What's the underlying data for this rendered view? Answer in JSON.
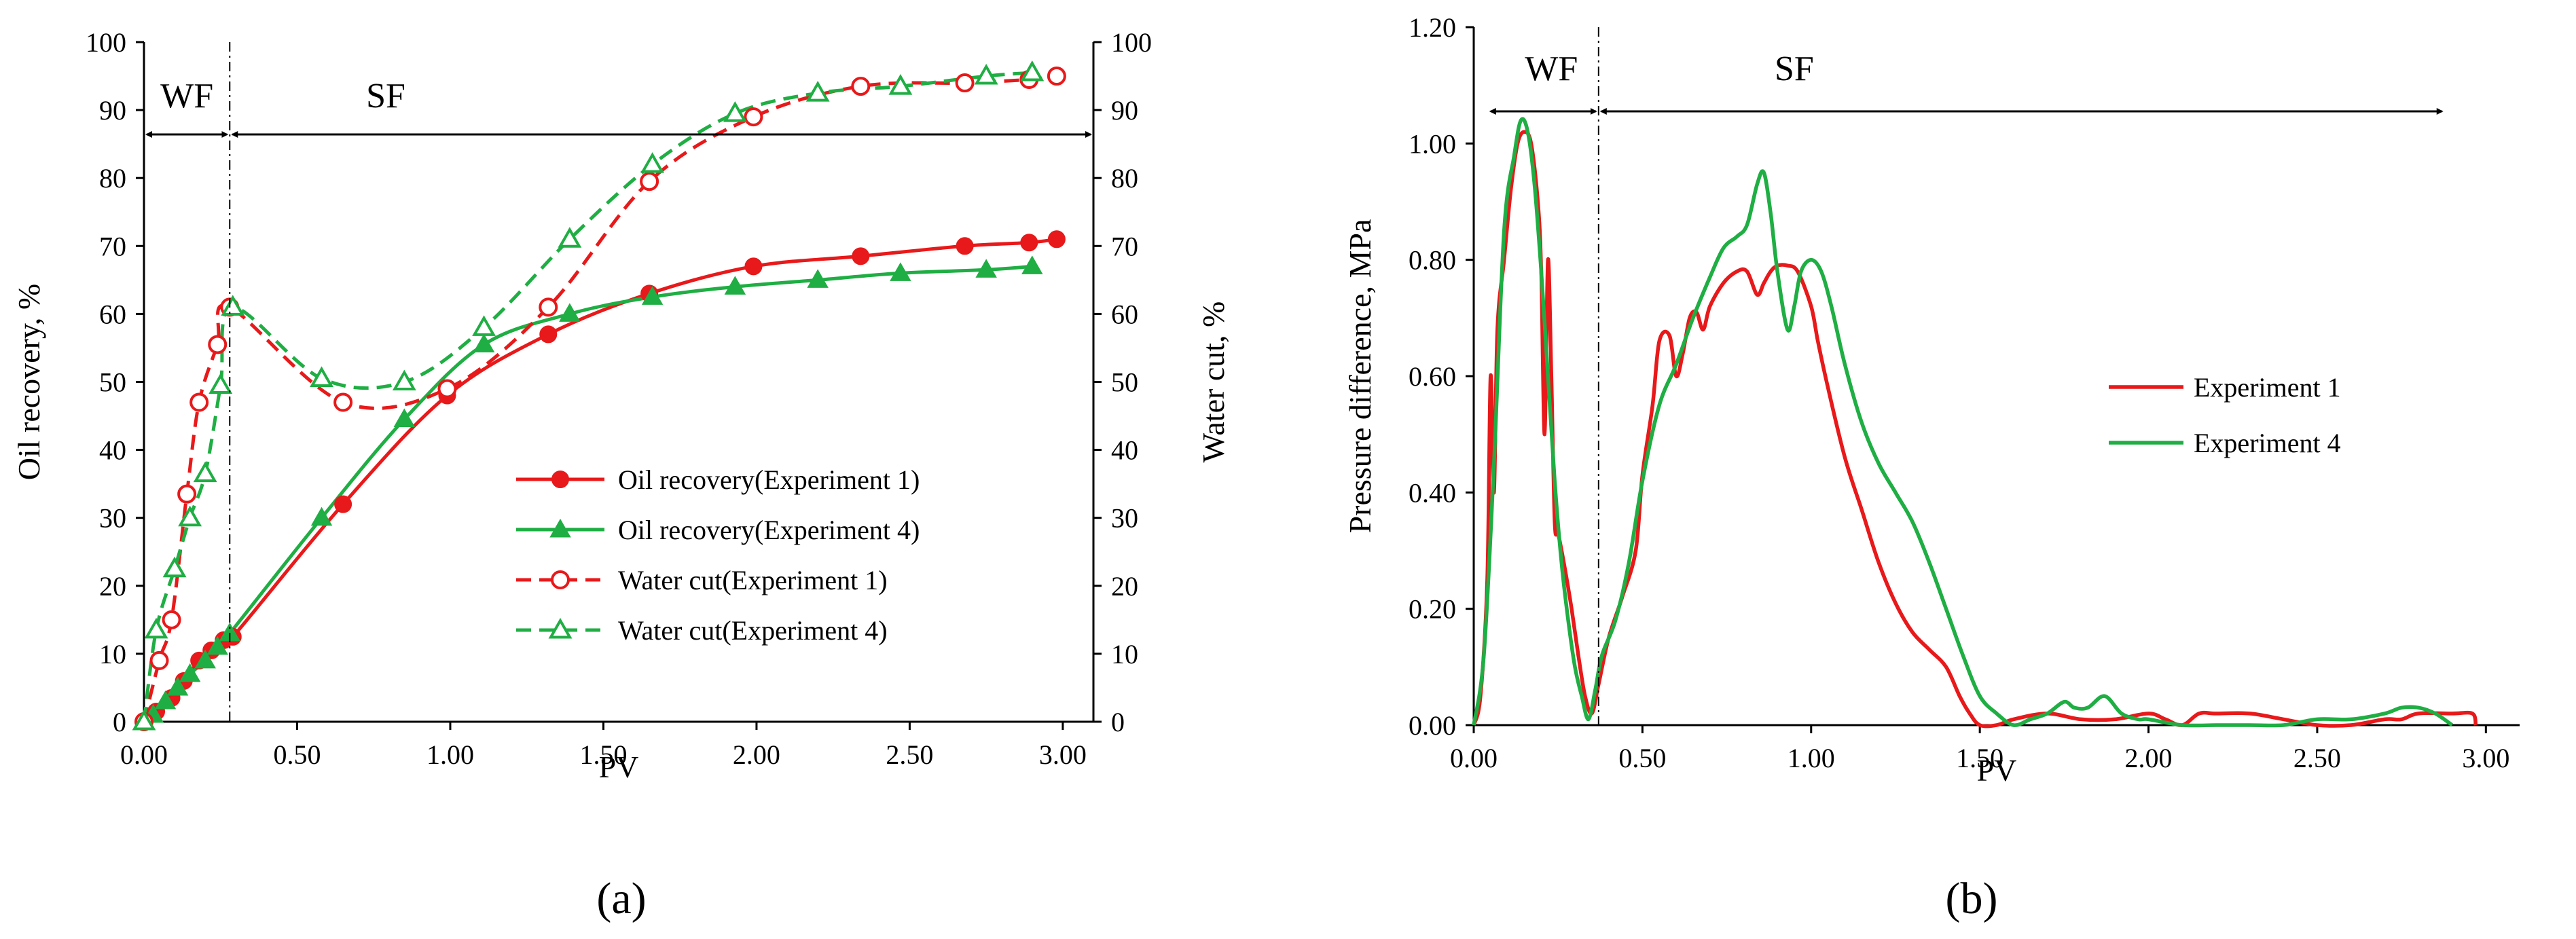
{
  "colors": {
    "experiment_1": "#e8191a",
    "experiment_4": "#1fae43",
    "axis": "#000000"
  },
  "chart_data": [
    {
      "type": "line",
      "panel_label": "(a)",
      "panel_letter": "a",
      "xlabel": "PV",
      "ylabel": "Oil recovery, %",
      "y2label": "Water cut, %",
      "xlim": [
        0,
        3.1
      ],
      "ylim": [
        0,
        100
      ],
      "y2lim": [
        0,
        100
      ],
      "xticks": [
        "0.00",
        "0.50",
        "1.00",
        "1.50",
        "2.00",
        "2.50",
        "3.00"
      ],
      "yticks": [
        "0",
        "10",
        "20",
        "30",
        "40",
        "50",
        "60",
        "70",
        "80",
        "90",
        "100"
      ],
      "y2ticks": [
        "0",
        "10",
        "20",
        "30",
        "40",
        "50",
        "60",
        "70",
        "80",
        "90",
        "100"
      ],
      "annotations": {
        "wf": "WF",
        "sf": "SF",
        "boundary_pv": 0.28
      },
      "series": [
        {
          "name": "Oil recovery(Experiment 1)",
          "color": "#e8191a",
          "marker": "filled-circle",
          "dash": "solid",
          "axis": "left",
          "x": [
            0,
            0.04,
            0.09,
            0.13,
            0.18,
            0.22,
            0.26,
            0.29,
            0.65,
            0.99,
            1.32,
            1.65,
            1.99,
            2.34,
            2.68,
            2.89,
            2.98
          ],
          "y": [
            0,
            1.5,
            3.5,
            6,
            9,
            10.5,
            12,
            12.5,
            32,
            48,
            57,
            63,
            67,
            68.5,
            70,
            70.5,
            71
          ]
        },
        {
          "name": "Oil recovery(Experiment 4)",
          "color": "#1fae43",
          "marker": "filled-triangle",
          "dash": "solid",
          "axis": "left",
          "x": [
            0,
            0.03,
            0.07,
            0.11,
            0.15,
            0.2,
            0.24,
            0.28,
            0.58,
            0.85,
            1.11,
            1.39,
            1.66,
            1.93,
            2.2,
            2.47,
            2.75,
            2.9
          ],
          "y": [
            0,
            1,
            3,
            5,
            7,
            9,
            11,
            13,
            30,
            44.5,
            55.5,
            60,
            62.5,
            64,
            65,
            66,
            66.5,
            67
          ]
        },
        {
          "name": "Water cut(Experiment 1)",
          "color": "#e8191a",
          "marker": "open-circle",
          "dash": "dashed",
          "axis": "right",
          "x": [
            0,
            0.05,
            0.09,
            0.14,
            0.18,
            0.24,
            0.28,
            0.65,
            0.99,
            1.32,
            1.65,
            1.99,
            2.34,
            2.68,
            2.89,
            2.98
          ],
          "y": [
            0,
            9,
            15,
            33.5,
            47,
            55.5,
            61,
            47,
            49,
            61,
            79.5,
            89,
            93.5,
            94,
            94.5,
            95
          ]
        },
        {
          "name": "Water cut(Experiment 4)",
          "color": "#1fae43",
          "marker": "open-triangle",
          "dash": "dashed",
          "axis": "right",
          "x": [
            0,
            0.04,
            0.1,
            0.15,
            0.2,
            0.25,
            0.29,
            0.58,
            0.85,
            1.11,
            1.39,
            1.66,
            1.93,
            2.2,
            2.47,
            2.75,
            2.9
          ],
          "y": [
            0,
            13.5,
            22.5,
            30,
            36.5,
            49.5,
            61,
            50.5,
            50,
            58,
            71,
            82,
            89.5,
            92.5,
            93.5,
            95,
            95.5
          ]
        }
      ]
    },
    {
      "type": "line",
      "panel_label": "(b)",
      "panel_letter": "b",
      "xlabel": "PV",
      "ylabel": "Pressure difference, MPa",
      "xlim": [
        0,
        3.1
      ],
      "ylim": [
        0,
        1.2
      ],
      "xticks": [
        "0.00",
        "0.50",
        "1.00",
        "1.50",
        "2.00",
        "2.50",
        "3.00"
      ],
      "yticks": [
        "0.00",
        "0.20",
        "0.40",
        "0.60",
        "0.80",
        "1.00",
        "1.20"
      ],
      "annotations": {
        "wf": "WF",
        "sf": "SF",
        "boundary_pv": 0.37
      },
      "series": [
        {
          "name": "Experiment 1",
          "color": "#e8191a",
          "dash": "solid",
          "x": [
            0,
            0.02,
            0.04,
            0.05,
            0.06,
            0.07,
            0.09,
            0.11,
            0.13,
            0.15,
            0.17,
            0.19,
            0.2,
            0.21,
            0.22,
            0.23,
            0.24,
            0.25,
            0.27,
            0.29,
            0.31,
            0.33,
            0.35,
            0.37,
            0.4,
            0.44,
            0.48,
            0.5,
            0.53,
            0.55,
            0.58,
            0.6,
            0.62,
            0.64,
            0.66,
            0.68,
            0.7,
            0.74,
            0.78,
            0.81,
            0.84,
            0.86,
            0.88,
            0.9,
            0.93,
            0.96,
            1.0,
            1.02,
            1.05,
            1.1,
            1.15,
            1.2,
            1.25,
            1.3,
            1.35,
            1.4,
            1.44,
            1.47,
            1.5,
            1.55,
            1.6,
            1.7,
            1.8,
            1.9,
            2.0,
            2.05,
            2.1,
            2.15,
            2.2,
            2.3,
            2.4,
            2.5,
            2.6,
            2.7,
            2.75,
            2.8,
            2.9,
            2.96,
            2.97
          ],
          "y": [
            0,
            0.05,
            0.25,
            0.6,
            0.4,
            0.68,
            0.8,
            0.92,
            1.0,
            1.02,
            1.0,
            0.9,
            0.78,
            0.5,
            0.8,
            0.6,
            0.35,
            0.33,
            0.27,
            0.2,
            0.12,
            0.05,
            0.02,
            0.07,
            0.15,
            0.22,
            0.3,
            0.43,
            0.55,
            0.66,
            0.67,
            0.6,
            0.64,
            0.7,
            0.71,
            0.68,
            0.72,
            0.76,
            0.78,
            0.78,
            0.74,
            0.76,
            0.78,
            0.79,
            0.79,
            0.78,
            0.72,
            0.66,
            0.58,
            0.46,
            0.37,
            0.28,
            0.21,
            0.16,
            0.13,
            0.1,
            0.05,
            0.02,
            0.0,
            0.0,
            0.01,
            0.02,
            0.01,
            0.01,
            0.02,
            0.01,
            0.0,
            0.02,
            0.02,
            0.02,
            0.01,
            0.0,
            0.0,
            0.01,
            0.01,
            0.02,
            0.02,
            0.02,
            0.0
          ]
        },
        {
          "name": "Experiment 4",
          "color": "#1fae43",
          "dash": "solid",
          "x": [
            0,
            0.03,
            0.06,
            0.09,
            0.12,
            0.14,
            0.16,
            0.18,
            0.2,
            0.22,
            0.24,
            0.26,
            0.28,
            0.3,
            0.32,
            0.34,
            0.36,
            0.38,
            0.42,
            0.46,
            0.5,
            0.55,
            0.6,
            0.65,
            0.7,
            0.74,
            0.78,
            0.81,
            0.84,
            0.86,
            0.88,
            0.9,
            0.93,
            0.95,
            0.97,
            1.0,
            1.03,
            1.06,
            1.1,
            1.15,
            1.2,
            1.25,
            1.3,
            1.35,
            1.4,
            1.45,
            1.5,
            1.55,
            1.6,
            1.65,
            1.7,
            1.75,
            1.78,
            1.82,
            1.87,
            1.92,
            1.97,
            2.0,
            2.1,
            2.2,
            2.3,
            2.4,
            2.5,
            2.6,
            2.7,
            2.75,
            2.8,
            2.85,
            2.9
          ],
          "y": [
            0,
            0.12,
            0.45,
            0.85,
            0.98,
            1.04,
            1.02,
            0.93,
            0.78,
            0.6,
            0.42,
            0.28,
            0.18,
            0.1,
            0.05,
            0.01,
            0.06,
            0.12,
            0.18,
            0.28,
            0.42,
            0.55,
            0.62,
            0.7,
            0.77,
            0.82,
            0.84,
            0.86,
            0.93,
            0.95,
            0.88,
            0.78,
            0.68,
            0.72,
            0.78,
            0.8,
            0.78,
            0.72,
            0.62,
            0.52,
            0.45,
            0.4,
            0.35,
            0.28,
            0.2,
            0.12,
            0.05,
            0.02,
            0.0,
            0.01,
            0.02,
            0.04,
            0.03,
            0.03,
            0.05,
            0.02,
            0.01,
            0.01,
            0.0,
            0.0,
            0.0,
            0.0,
            0.01,
            0.01,
            0.02,
            0.03,
            0.03,
            0.02,
            0.0
          ]
        }
      ]
    }
  ]
}
